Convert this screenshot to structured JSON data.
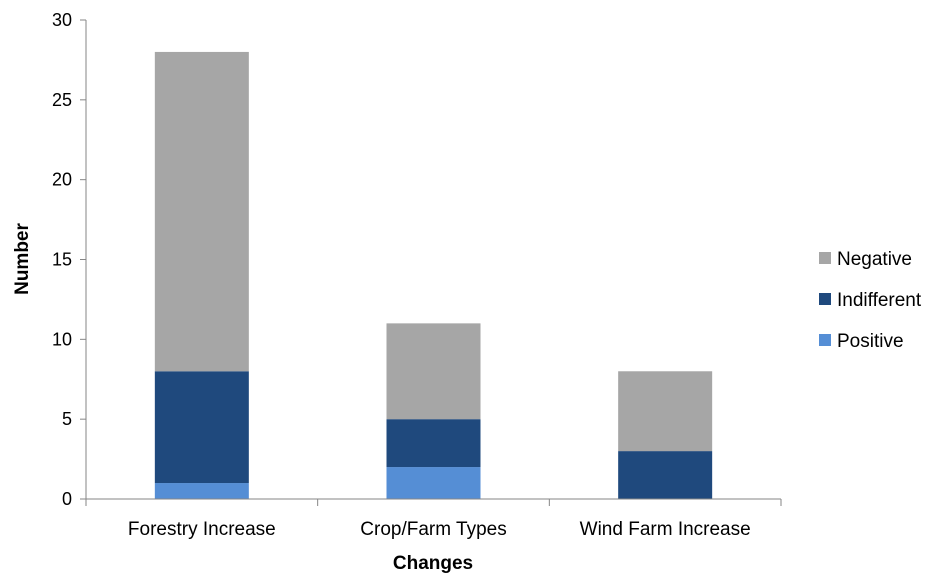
{
  "chart_data": {
    "type": "bar",
    "stacked": true,
    "xlabel": "Changes",
    "ylabel": "Number",
    "ylim": [
      0,
      30
    ],
    "yticks": [
      0,
      5,
      10,
      15,
      20,
      25,
      30
    ],
    "categories": [
      "Forestry Increase",
      "Crop/Farm Types",
      "Wind Farm Increase"
    ],
    "series": [
      {
        "name": "Positive",
        "color": "#558ED5",
        "values": [
          1,
          2,
          0
        ]
      },
      {
        "name": "Indifferent",
        "color": "#1F497D",
        "values": [
          7,
          3,
          3
        ]
      },
      {
        "name": "Negative",
        "color": "#A6A6A6",
        "values": [
          20,
          6,
          5
        ]
      }
    ],
    "legend": {
      "position": "right",
      "order": [
        "Negative",
        "Indifferent",
        "Positive"
      ]
    },
    "grid": false
  }
}
